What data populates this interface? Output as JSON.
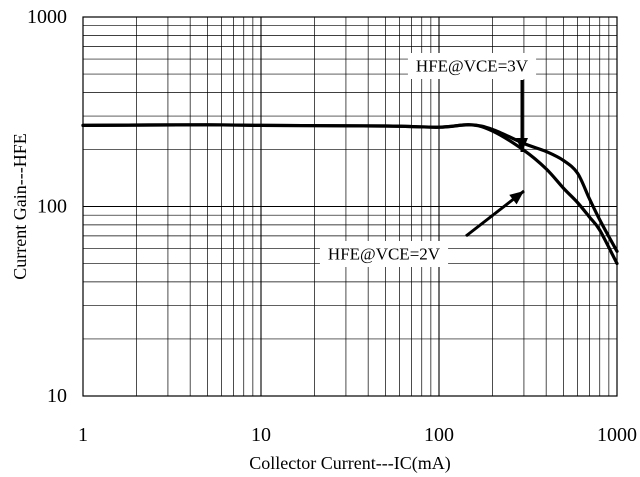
{
  "chart_data": {
    "type": "line",
    "x_scale": "log",
    "y_scale": "log",
    "xlim": [
      1,
      1000
    ],
    "ylim": [
      10,
      1000
    ],
    "xlabel": "Collector Current---IC(mA)",
    "ylabel": "Current Gain---HFE",
    "x_tick_labels": [
      "1",
      "10",
      "100",
      "1000"
    ],
    "y_tick_labels": [
      "10",
      "100",
      "1000"
    ],
    "grid": true,
    "series": [
      {
        "name": "HFE@VCE=3V",
        "x": [
          1,
          5,
          10,
          50,
          100,
          150,
          200,
          300,
          400,
          500,
          600,
          700,
          800,
          1000
        ],
        "y": [
          268,
          270,
          268,
          266,
          262,
          270,
          255,
          215,
          195,
          175,
          150,
          110,
          85,
          58
        ]
      },
      {
        "name": "HFE@VCE=2V",
        "x": [
          1,
          5,
          10,
          50,
          100,
          150,
          200,
          300,
          400,
          500,
          600,
          700,
          800,
          1000
        ],
        "y": [
          268,
          270,
          268,
          266,
          262,
          270,
          250,
          198,
          158,
          125,
          105,
          88,
          75,
          50
        ]
      }
    ],
    "annotations": [
      {
        "text": "HFE@VCE=3V"
      },
      {
        "text": "HFE@VCE=2V"
      }
    ]
  }
}
